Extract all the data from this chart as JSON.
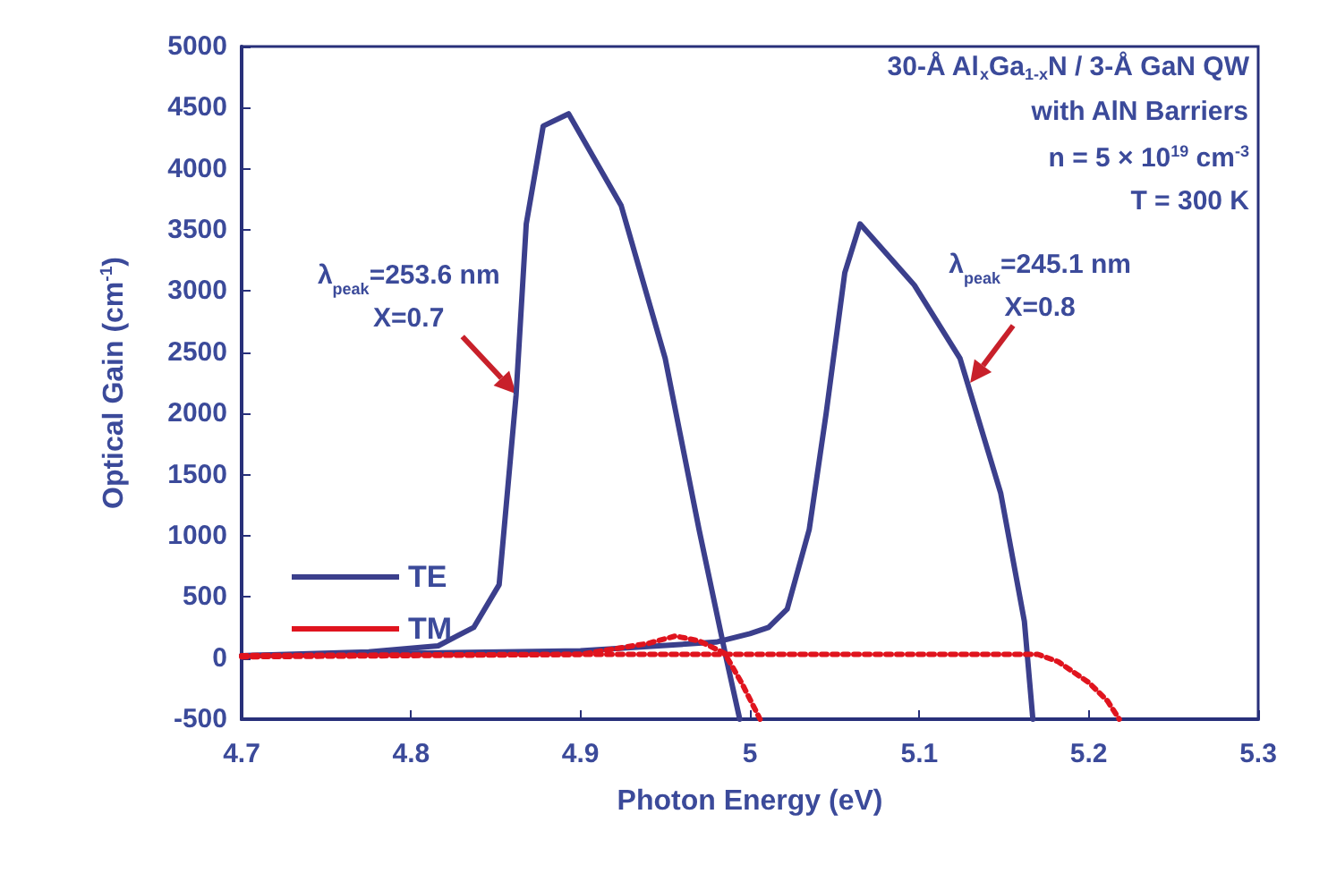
{
  "chart_data": {
    "type": "line",
    "xlabel": "Photon Energy (eV)",
    "ylabel": "Optical Gain (cm$^{-1}$)",
    "xlim": [
      4.7,
      5.3
    ],
    "xticks": [
      4.7,
      4.8,
      4.9,
      5,
      5.1,
      5.2,
      5.3
    ],
    "ylim": [
      -500,
      5000
    ],
    "yticks": [
      -500,
      0,
      500,
      1000,
      1500,
      2000,
      2500,
      3000,
      3500,
      4000,
      4500,
      5000
    ],
    "grid": false,
    "legend": "bottom left",
    "marker": "none",
    "series": [
      {
        "name": "TE",
        "color": "#3b3f8c",
        "line_style": "solid",
        "x": [
          4.7,
          4.775,
          4.816,
          4.837,
          4.852,
          4.862,
          4.868,
          4.878,
          4.893,
          4.924,
          4.95,
          4.97,
          4.986,
          4.994
        ],
        "values": [
          20,
          50,
          100,
          250,
          600,
          2150,
          3550,
          4350,
          4450,
          3700,
          2450,
          1050,
          0,
          -500
        ]
      },
      {
        "color": "#3b3f8c",
        "line_style": "solid",
        "x": [
          4.7,
          4.8,
          4.9,
          4.98,
          5.0,
          5.011,
          5.022,
          5.035,
          5.045,
          5.056,
          5.065,
          5.097,
          5.124,
          5.148,
          5.162,
          5.167
        ],
        "values": [
          20,
          40,
          60,
          130,
          200,
          250,
          400,
          1050,
          2000,
          3150,
          3550,
          3050,
          2450,
          1350,
          300,
          -500
        ]
      },
      {
        "name": "TM",
        "color": "#e0141e",
        "line_style": "dotted",
        "x": [
          4.7,
          4.9,
          4.94,
          4.956,
          4.97,
          4.985,
          4.995,
          5.006
        ],
        "values": [
          10,
          30,
          120,
          180,
          140,
          40,
          -200,
          -500
        ]
      },
      {
        "color": "#e0141e",
        "line_style": "dotted",
        "x": [
          4.7,
          4.9,
          5.0,
          5.1,
          5.17,
          5.182,
          5.2,
          5.211,
          5.218
        ],
        "values": [
          20,
          30,
          30,
          30,
          30,
          -30,
          -200,
          -350,
          -500
        ]
      }
    ],
    "annotations": [
      "30-Å Al$_{x}$Ga$_{1-x}$N / 3-Å GaN QW",
      "with AlN Barriers",
      "n = 5 × 10$^{19}$ cm$^{-3}$",
      "T = 300 K",
      {
        "text": "λ$_{peak}$=253.6 nm\nX=0.7",
        "x": 4.862,
        "y": 2160
      },
      {
        "text": "λ$_{peak}$=245.1 nm\nX=0.8",
        "x": 5.13,
        "y": 2250
      }
    ]
  }
}
